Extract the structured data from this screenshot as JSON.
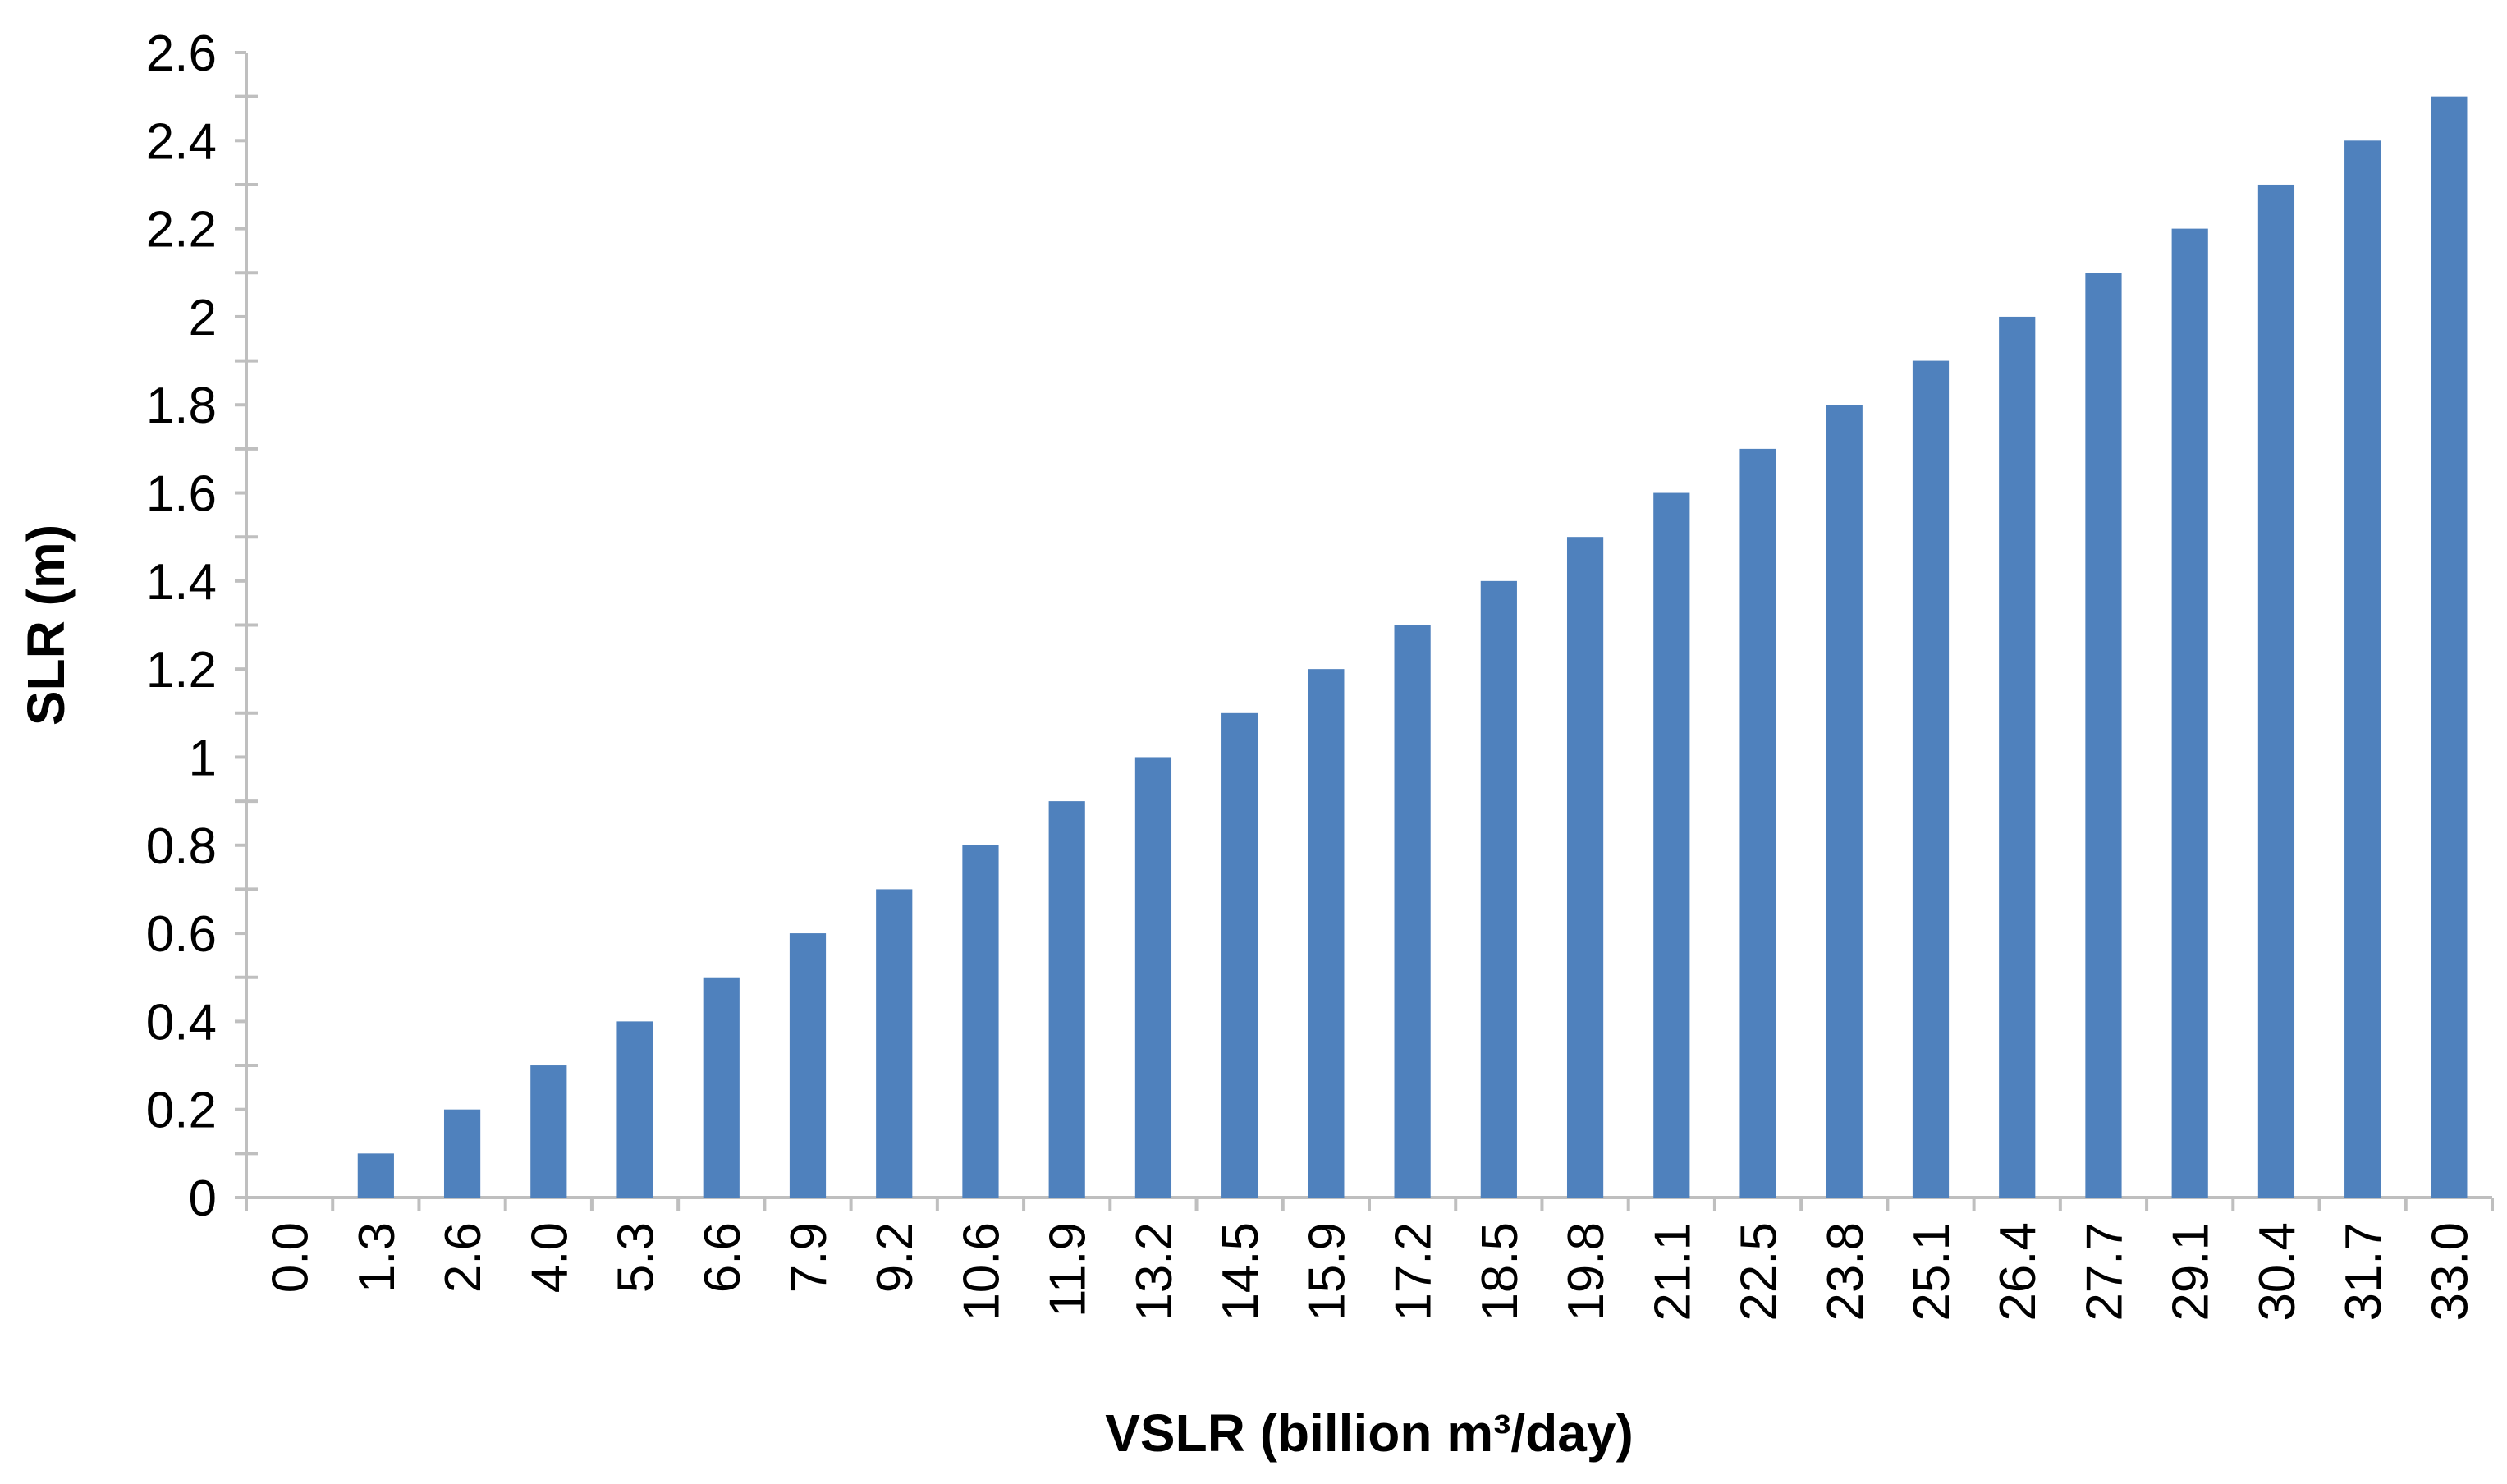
{
  "chart_data": {
    "type": "bar",
    "xlabel": "VSLR (billion m³/day)",
    "ylabel": "SLR (m)",
    "categories": [
      "0.0",
      "1.3",
      "2.6",
      "4.0",
      "5.3",
      "6.6",
      "7.9",
      "9.2",
      "10.6",
      "11.9",
      "13.2",
      "14.5",
      "15.9",
      "17.2",
      "18.5",
      "19.8",
      "21.1",
      "22.5",
      "23.8",
      "25.1",
      "26.4",
      "27.7",
      "29.1",
      "30.4",
      "31.7",
      "33.0"
    ],
    "series": [
      {
        "values": [
          0,
          0.1,
          0.2,
          0.3,
          0.4,
          0.5,
          0.6,
          0.7,
          0.8,
          0.9,
          1.0,
          1.1,
          1.2,
          1.3,
          1.4,
          1.5,
          1.6,
          1.7,
          1.8,
          1.9,
          2.0,
          2.1,
          2.2,
          2.3,
          2.4,
          2.5
        ]
      }
    ],
    "yticks": [
      "0",
      "0.2",
      "0.4",
      "0.6",
      "0.8",
      "1",
      "1.2",
      "1.4",
      "1.6",
      "1.8",
      "2",
      "2.2",
      "2.4",
      "2.6"
    ],
    "ylim": [
      0,
      2.6
    ],
    "grid": false,
    "legend": "none",
    "colors": {
      "bar": "#4F81BD",
      "axis": "#BFBFBF"
    }
  }
}
